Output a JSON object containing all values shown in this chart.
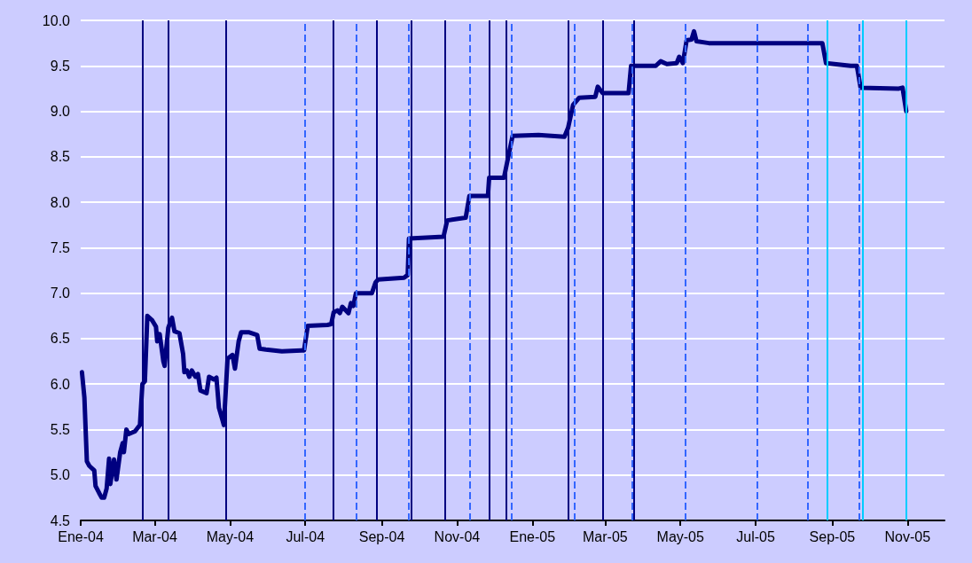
{
  "chart_data": {
    "type": "line",
    "grid": "y",
    "marker": "none",
    "line_style": "solid",
    "x": [
      "2004-01-02",
      "2004-01-04",
      "2004-01-06",
      "2004-01-08",
      "2004-01-12",
      "2004-01-13",
      "2004-01-16",
      "2004-01-18",
      "2004-01-20",
      "2004-01-22",
      "2004-01-24",
      "2004-01-25",
      "2004-01-28",
      "2004-01-30",
      "2004-02-02",
      "2004-02-04",
      "2004-02-05",
      "2004-02-07",
      "2004-02-09",
      "2004-02-14",
      "2004-02-18",
      "2004-02-20",
      "2004-02-22",
      "2004-02-24",
      "2004-02-28",
      "2004-03-02",
      "2004-03-03",
      "2004-03-05",
      "2004-03-08",
      "2004-03-09",
      "2004-03-12",
      "2004-03-15",
      "2004-03-17",
      "2004-03-21",
      "2004-03-24",
      "2004-03-25",
      "2004-03-27",
      "2004-03-29",
      "2004-03-31",
      "2004-04-03",
      "2004-04-05",
      "2004-04-07",
      "2004-04-12",
      "2004-04-14",
      "2004-04-18",
      "2004-04-20",
      "2004-04-22",
      "2004-04-25",
      "2004-04-26",
      "2004-04-29",
      "2004-05-03",
      "2004-05-05",
      "2004-05-08",
      "2004-05-10",
      "2004-05-16",
      "2004-05-23",
      "2004-05-25",
      "2004-05-30",
      "2004-06-12",
      "2004-06-28",
      "2004-06-30",
      "2004-07-03",
      "2004-07-19",
      "2004-07-22",
      "2004-07-24",
      "2004-07-27",
      "2004-07-29",
      "2004-07-31",
      "2004-08-05",
      "2004-08-07",
      "2004-08-09",
      "2004-08-11",
      "2004-08-24",
      "2004-08-27",
      "2004-08-29",
      "2004-09-19",
      "2004-09-22",
      "2004-09-23",
      "2004-10-21",
      "2004-10-24",
      "2004-11-08",
      "2004-11-11",
      "2004-11-26",
      "2004-11-27",
      "2004-12-09",
      "2004-12-11",
      "2004-12-16",
      "2005-01-06",
      "2005-01-27",
      "2005-01-30",
      "2005-02-03",
      "2005-02-08",
      "2005-02-21",
      "2005-02-23",
      "2005-02-27",
      "2005-03-20",
      "2005-03-22",
      "2005-04-11",
      "2005-04-15",
      "2005-04-20",
      "2005-04-28",
      "2005-04-30",
      "2005-05-03",
      "2005-05-06",
      "2005-05-10",
      "2005-05-12",
      "2005-05-14",
      "2005-05-24",
      "2005-08-24",
      "2005-08-27",
      "2005-09-16",
      "2005-09-21",
      "2005-09-24",
      "2005-10-25",
      "2005-10-28",
      "2005-10-31"
    ],
    "series": [
      {
        "color": "#000080",
        "values": [
          6.13,
          5.85,
          5.15,
          5.1,
          5.05,
          4.88,
          4.8,
          4.75,
          4.75,
          4.85,
          5.18,
          4.9,
          5.17,
          4.95,
          5.25,
          5.35,
          5.25,
          5.5,
          5.45,
          5.48,
          5.55,
          6.0,
          6.03,
          6.75,
          6.7,
          6.63,
          6.47,
          6.55,
          6.25,
          6.2,
          6.62,
          6.73,
          6.58,
          6.56,
          6.33,
          6.13,
          6.15,
          6.08,
          6.15,
          6.08,
          6.11,
          5.93,
          5.9,
          6.08,
          6.05,
          6.07,
          5.74,
          5.6,
          5.55,
          6.28,
          6.32,
          6.17,
          6.47,
          6.57,
          6.57,
          6.54,
          6.39,
          6.38,
          6.36,
          6.37,
          6.37,
          6.64,
          6.65,
          6.66,
          6.79,
          6.81,
          6.78,
          6.85,
          6.78,
          6.89,
          6.86,
          7.0,
          7.0,
          7.12,
          7.15,
          7.17,
          7.2,
          7.6,
          7.62,
          7.8,
          7.83,
          8.07,
          8.07,
          8.27,
          8.27,
          8.4,
          8.73,
          8.74,
          8.72,
          8.82,
          9.07,
          9.15,
          9.16,
          9.27,
          9.2,
          9.2,
          9.5,
          9.5,
          9.55,
          9.52,
          9.53,
          9.6,
          9.53,
          9.78,
          9.79,
          9.88,
          9.77,
          9.75,
          9.75,
          9.53,
          9.5,
          9.5,
          9.26,
          9.25,
          9.26,
          9.0
        ]
      }
    ],
    "xlim": [
      "2004-01-01",
      "2005-12-01"
    ],
    "xticks": [
      {
        "value": "2004-01-01",
        "label": "Ene-04"
      },
      {
        "value": "2004-03-01",
        "label": "Mar-04"
      },
      {
        "value": "2004-05-01",
        "label": "May-04"
      },
      {
        "value": "2004-07-01",
        "label": "Jul-04"
      },
      {
        "value": "2004-09-01",
        "label": "Sep-04"
      },
      {
        "value": "2004-11-01",
        "label": "Nov-04"
      },
      {
        "value": "2005-01-01",
        "label": "Ene-05"
      },
      {
        "value": "2005-03-01",
        "label": "Mar-05"
      },
      {
        "value": "2005-05-01",
        "label": "May-05"
      },
      {
        "value": "2005-07-01",
        "label": "Jul-05"
      },
      {
        "value": "2005-09-01",
        "label": "Sep-05"
      },
      {
        "value": "2005-11-01",
        "label": "Nov-05"
      }
    ],
    "ylim": [
      4.5,
      10
    ],
    "yticks": [
      {
        "value": 4.5,
        "label": "4.5"
      },
      {
        "value": 5,
        "label": "5.0"
      },
      {
        "value": 5.5,
        "label": "5.5"
      },
      {
        "value": 6,
        "label": "6.0"
      },
      {
        "value": 6.5,
        "label": "6.5"
      },
      {
        "value": 7,
        "label": "7.0"
      },
      {
        "value": 7.5,
        "label": "7.5"
      },
      {
        "value": 8,
        "label": "8.0"
      },
      {
        "value": 8.5,
        "label": "8.5"
      },
      {
        "value": 9,
        "label": "9.0"
      },
      {
        "value": 9.5,
        "label": "9.5"
      },
      {
        "value": 10,
        "label": "10.0"
      }
    ],
    "ref_lines": [
      {
        "axis": "x",
        "value": "2004-02-20",
        "color": "#000080",
        "line_style": "solid"
      },
      {
        "axis": "x",
        "value": "2004-03-12",
        "color": "#000080",
        "line_style": "solid"
      },
      {
        "axis": "x",
        "value": "2004-04-28",
        "color": "#000080",
        "line_style": "solid"
      },
      {
        "axis": "x",
        "value": "2004-07-24",
        "color": "#000080",
        "line_style": "solid"
      },
      {
        "axis": "x",
        "value": "2004-08-28",
        "color": "#000080",
        "line_style": "solid"
      },
      {
        "axis": "x",
        "value": "2004-09-25",
        "color": "#000080",
        "line_style": "solid"
      },
      {
        "axis": "x",
        "value": "2004-10-22",
        "color": "#000080",
        "line_style": "solid"
      },
      {
        "axis": "x",
        "value": "2004-11-27",
        "color": "#000080",
        "line_style": "solid"
      },
      {
        "axis": "x",
        "value": "2004-12-11",
        "color": "#000080",
        "line_style": "solid"
      },
      {
        "axis": "x",
        "value": "2005-01-30",
        "color": "#000080",
        "line_style": "solid"
      },
      {
        "axis": "x",
        "value": "2005-02-27",
        "color": "#000080",
        "line_style": "solid"
      },
      {
        "axis": "x",
        "value": "2005-03-24",
        "color": "#000080",
        "line_style": "solid"
      },
      {
        "axis": "x",
        "value": "2004-07-01",
        "color": "#3366ff",
        "line_style": "dashed"
      },
      {
        "axis": "x",
        "value": "2004-08-11",
        "color": "#3366ff",
        "line_style": "dashed"
      },
      {
        "axis": "x",
        "value": "2004-09-23",
        "color": "#3366ff",
        "line_style": "dashed"
      },
      {
        "axis": "x",
        "value": "2004-11-11",
        "color": "#3366ff",
        "line_style": "dashed"
      },
      {
        "axis": "x",
        "value": "2004-12-15",
        "color": "#3366ff",
        "line_style": "dashed"
      },
      {
        "axis": "x",
        "value": "2005-02-04",
        "color": "#3366ff",
        "line_style": "dashed"
      },
      {
        "axis": "x",
        "value": "2005-03-23",
        "color": "#3366ff",
        "line_style": "dashed"
      },
      {
        "axis": "x",
        "value": "2005-05-05",
        "color": "#3366ff",
        "line_style": "dashed"
      },
      {
        "axis": "x",
        "value": "2005-07-02",
        "color": "#3366ff",
        "line_style": "dashed"
      },
      {
        "axis": "x",
        "value": "2005-08-12",
        "color": "#3366ff",
        "line_style": "dashed"
      },
      {
        "axis": "x",
        "value": "2005-09-23",
        "color": "#3366ff",
        "line_style": "dashed"
      },
      {
        "axis": "x",
        "value": "2005-08-28",
        "color": "#00ccff",
        "line_style": "solid"
      },
      {
        "axis": "x",
        "value": "2005-09-26",
        "color": "#00ccff",
        "line_style": "solid"
      },
      {
        "axis": "x",
        "value": "2005-10-31",
        "color": "#00ccff",
        "line_style": "solid"
      }
    ]
  }
}
